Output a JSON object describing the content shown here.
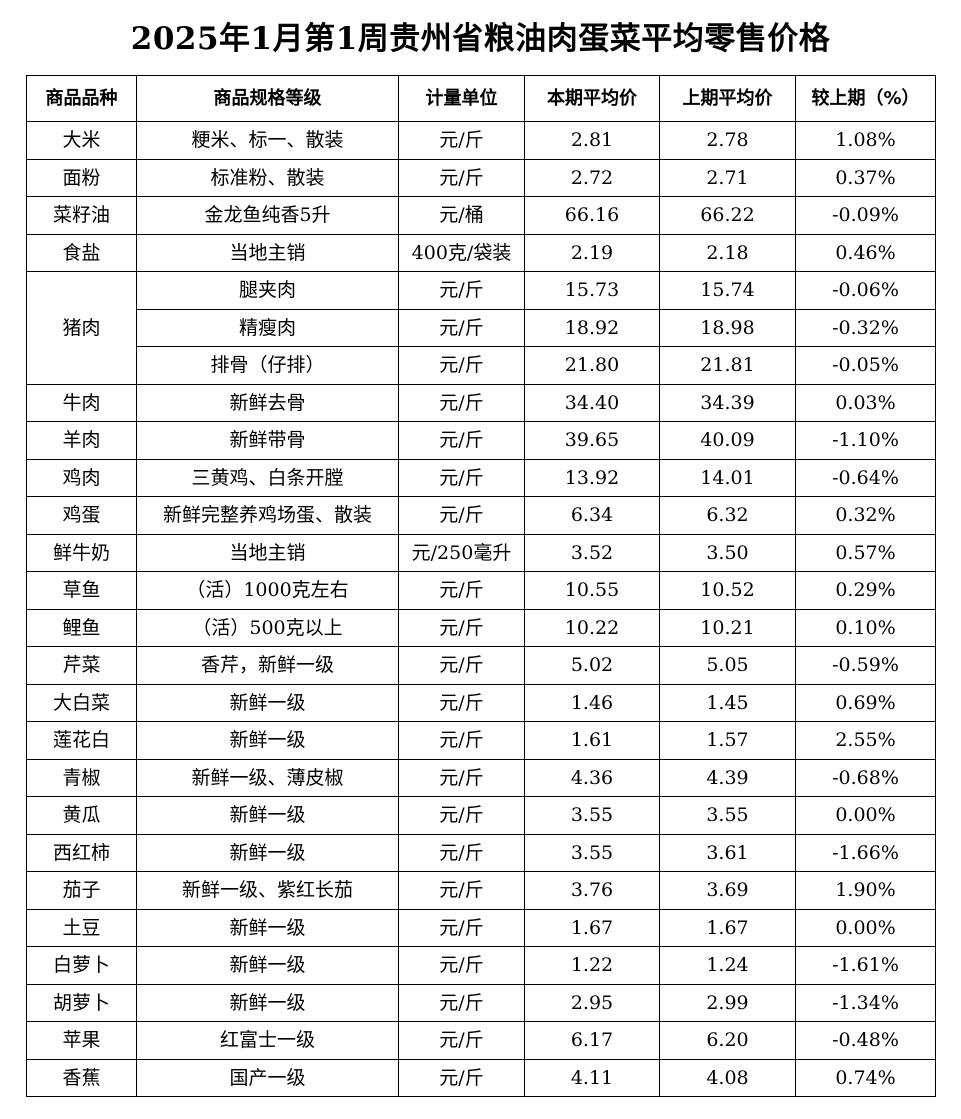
{
  "title": "2025年1月第1周贵州省粮油肉蛋菜平均零售价格",
  "table": {
    "headers": [
      "商品品种",
      "商品规格等级",
      "计量单位",
      "本期平均价",
      "上期平均价",
      "较上期（%）"
    ],
    "rows": [
      {
        "variety": "大米",
        "spec": "粳米、标一、散装",
        "unit": "元/斤",
        "current": "2.81",
        "previous": "2.78",
        "change": "1.08%"
      },
      {
        "variety": "面粉",
        "spec": "标准粉、散装",
        "unit": "元/斤",
        "current": "2.72",
        "previous": "2.71",
        "change": "0.37%"
      },
      {
        "variety": "菜籽油",
        "spec": "金龙鱼纯香5升",
        "unit": "元/桶",
        "current": "66.16",
        "previous": "66.22",
        "change": "-0.09%"
      },
      {
        "variety": "食盐",
        "spec": "当地主销",
        "unit": "400克/袋装",
        "current": "2.19",
        "previous": "2.18",
        "change": "0.46%"
      },
      {
        "variety": "猪肉",
        "rowspan": 3,
        "spec": "腿夹肉",
        "unit": "元/斤",
        "current": "15.73",
        "previous": "15.74",
        "change": "-0.06%"
      },
      {
        "spec": "精瘦肉",
        "unit": "元/斤",
        "current": "18.92",
        "previous": "18.98",
        "change": "-0.32%"
      },
      {
        "spec": "排骨（仔排）",
        "unit": "元/斤",
        "current": "21.80",
        "previous": "21.81",
        "change": "-0.05%"
      },
      {
        "variety": "牛肉",
        "spec": "新鲜去骨",
        "unit": "元/斤",
        "current": "34.40",
        "previous": "34.39",
        "change": "0.03%"
      },
      {
        "variety": "羊肉",
        "spec": "新鲜带骨",
        "unit": "元/斤",
        "current": "39.65",
        "previous": "40.09",
        "change": "-1.10%"
      },
      {
        "variety": "鸡肉",
        "spec": "三黄鸡、白条开膛",
        "unit": "元/斤",
        "current": "13.92",
        "previous": "14.01",
        "change": "-0.64%"
      },
      {
        "variety": "鸡蛋",
        "spec": "新鲜完整养鸡场蛋、散装",
        "unit": "元/斤",
        "current": "6.34",
        "previous": "6.32",
        "change": "0.32%"
      },
      {
        "variety": "鲜牛奶",
        "spec": "当地主销",
        "unit": "元/250毫升",
        "current": "3.52",
        "previous": "3.50",
        "change": "0.57%"
      },
      {
        "variety": "草鱼",
        "spec": "（活）1000克左右",
        "unit": "元/斤",
        "current": "10.55",
        "previous": "10.52",
        "change": "0.29%"
      },
      {
        "variety": "鲤鱼",
        "spec": "（活）500克以上",
        "unit": "元/斤",
        "current": "10.22",
        "previous": "10.21",
        "change": "0.10%"
      },
      {
        "variety": "芹菜",
        "spec": "香芹，新鲜一级",
        "unit": "元/斤",
        "current": "5.02",
        "previous": "5.05",
        "change": "-0.59%"
      },
      {
        "variety": "大白菜",
        "spec": "新鲜一级",
        "unit": "元/斤",
        "current": "1.46",
        "previous": "1.45",
        "change": "0.69%"
      },
      {
        "variety": "莲花白",
        "spec": "新鲜一级",
        "unit": "元/斤",
        "current": "1.61",
        "previous": "1.57",
        "change": "2.55%"
      },
      {
        "variety": "青椒",
        "spec": "新鲜一级、薄皮椒",
        "unit": "元/斤",
        "current": "4.36",
        "previous": "4.39",
        "change": "-0.68%"
      },
      {
        "variety": "黄瓜",
        "spec": "新鲜一级",
        "unit": "元/斤",
        "current": "3.55",
        "previous": "3.55",
        "change": "0.00%"
      },
      {
        "variety": "西红柿",
        "spec": "新鲜一级",
        "unit": "元/斤",
        "current": "3.55",
        "previous": "3.61",
        "change": "-1.66%"
      },
      {
        "variety": "茄子",
        "spec": "新鲜一级、紫红长茄",
        "unit": "元/斤",
        "current": "3.76",
        "previous": "3.69",
        "change": "1.90%"
      },
      {
        "variety": "土豆",
        "spec": "新鲜一级",
        "unit": "元/斤",
        "current": "1.67",
        "previous": "1.67",
        "change": "0.00%"
      },
      {
        "variety": "白萝卜",
        "spec": "新鲜一级",
        "unit": "元/斤",
        "current": "1.22",
        "previous": "1.24",
        "change": "-1.61%"
      },
      {
        "variety": "胡萝卜",
        "spec": "新鲜一级",
        "unit": "元/斤",
        "current": "2.95",
        "previous": "2.99",
        "change": "-1.34%"
      },
      {
        "variety": "苹果",
        "spec": "红富士一级",
        "unit": "元/斤",
        "current": "6.17",
        "previous": "6.20",
        "change": "-0.48%"
      },
      {
        "variety": "香蕉",
        "spec": "国产一级",
        "unit": "元/斤",
        "current": "4.11",
        "previous": "4.08",
        "change": "0.74%"
      }
    ]
  }
}
